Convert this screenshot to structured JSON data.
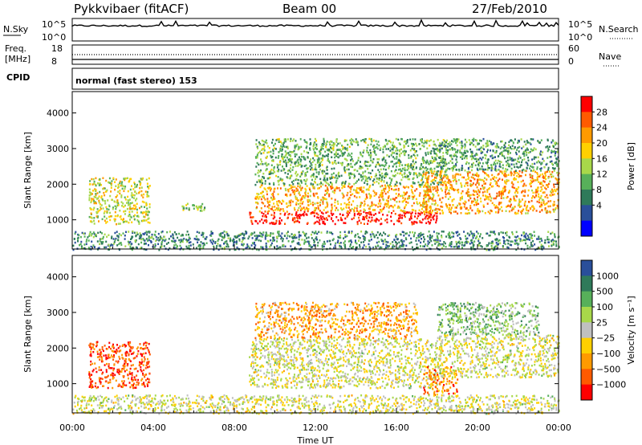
{
  "header": {
    "radar": "Pykkvibaer (fitACF)",
    "beam": "Beam 00",
    "date": "27/Feb/2010"
  },
  "noise_panel": {
    "left_label": "N.Sky",
    "right_label": "N.Search",
    "ticks": [
      "10^5",
      "10^0"
    ]
  },
  "freq_panel": {
    "left_label_1": "Freq.",
    "left_label_2": "[MHz]",
    "right_label": "Nave",
    "left_ticks": [
      "18",
      "8"
    ],
    "right_ticks": [
      "60",
      "0"
    ]
  },
  "cpid_panel": {
    "label": "CPID",
    "text": "normal (fast stereo) 153"
  },
  "x_axis": {
    "label": "Time UT",
    "ticks": [
      "00:00",
      "04:00",
      "08:00",
      "12:00",
      "16:00",
      "20:00",
      "00:00"
    ]
  },
  "chart_data": [
    {
      "type": "heatmap",
      "title": "",
      "xlabel": "Time UT",
      "ylabel": "Slant Range [km]",
      "xlim": [
        0,
        24
      ],
      "ylim": [
        180,
        4600
      ],
      "yticks": [
        "4000",
        "3000",
        "2000",
        "1000"
      ],
      "colorbar": {
        "label": "Power [dB]",
        "ticks": [
          "28",
          "24",
          "20",
          "16",
          "12",
          "8",
          "4"
        ],
        "colors": [
          "#ff0000",
          "#ff5a00",
          "#ff9a00",
          "#ffd000",
          "#a8d84a",
          "#57b05a",
          "#2f7a5a",
          "#2a4f9a",
          "#0000ff"
        ]
      },
      "bands": [
        {
          "t": [
            0.8,
            3.8
          ],
          "r": [
            900,
            2200
          ],
          "level": 0.55
        },
        {
          "t": [
            5.3,
            6.5
          ],
          "r": [
            1250,
            1500
          ],
          "level": 0.45
        },
        {
          "t": [
            8.7,
            18.0
          ],
          "r": [
            900,
            1250
          ],
          "level": 0.95
        },
        {
          "t": [
            9.0,
            18.0
          ],
          "r": [
            1250,
            2000
          ],
          "level": 0.7
        },
        {
          "t": [
            9.0,
            18.5
          ],
          "r": [
            2000,
            3300
          ],
          "level": 0.4
        },
        {
          "t": [
            17.3,
            24.0
          ],
          "r": [
            1200,
            2400
          ],
          "level": 0.7
        },
        {
          "t": [
            18.0,
            24.0
          ],
          "r": [
            2400,
            3300
          ],
          "level": 0.35
        },
        {
          "t": [
            0.0,
            24.0
          ],
          "r": [
            180,
            700
          ],
          "level": 0.3
        }
      ]
    },
    {
      "type": "heatmap",
      "title": "",
      "xlabel": "Time UT",
      "ylabel": "Slant Range [km]",
      "xlim": [
        0,
        24
      ],
      "ylim": [
        180,
        4600
      ],
      "yticks": [
        "4000",
        "3000",
        "2000",
        "1000"
      ],
      "colorbar": {
        "label": "Velocity [m s⁻¹]",
        "ticks": [
          "1000",
          "500",
          "100",
          "25",
          "−25",
          "−100",
          "−500",
          "−1000"
        ],
        "colors": [
          "#2a4f9a",
          "#2f7a5a",
          "#57b05a",
          "#a8d84a",
          "#c0c0c0",
          "#ffd000",
          "#ff9a00",
          "#ff5a00",
          "#ff0000"
        ]
      },
      "bands": [
        {
          "t": [
            0.8,
            3.8
          ],
          "r": [
            900,
            2200
          ],
          "level": 0.15
        },
        {
          "t": [
            8.7,
            18.0
          ],
          "r": [
            900,
            2300
          ],
          "level": 0.5
        },
        {
          "t": [
            9.0,
            17.0
          ],
          "r": [
            2300,
            3300
          ],
          "level": 0.3
        },
        {
          "t": [
            17.3,
            19.0
          ],
          "r": [
            700,
            1500
          ],
          "level": 0.25
        },
        {
          "t": [
            18.0,
            24.0
          ],
          "r": [
            1200,
            2400
          ],
          "level": 0.5
        },
        {
          "t": [
            18.0,
            23.0
          ],
          "r": [
            2400,
            3300
          ],
          "level": 0.65
        },
        {
          "t": [
            0.0,
            24.0
          ],
          "r": [
            180,
            700
          ],
          "level": 0.5
        }
      ]
    }
  ]
}
